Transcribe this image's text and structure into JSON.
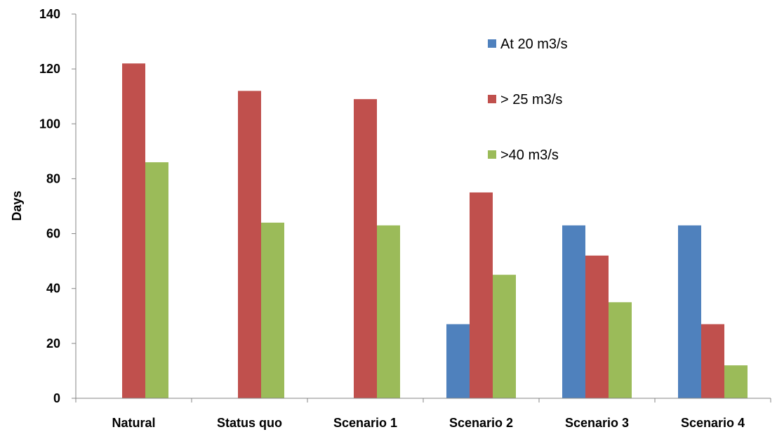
{
  "chart_data": {
    "type": "bar",
    "title": "",
    "xlabel": "",
    "ylabel": "Days",
    "ylim": [
      0,
      140
    ],
    "ytick_step": 20,
    "grid": false,
    "legend_placement": "top-right",
    "categories": [
      "Natural",
      "Status quo",
      "Scenario 1",
      "Scenario 2",
      "Scenario 3",
      "Scenario 4"
    ],
    "series": [
      {
        "name": "At 20 m3/s",
        "color": "#4F81BD",
        "values": [
          0,
          0,
          0,
          27,
          63,
          63
        ]
      },
      {
        "name": "> 25 m3/s",
        "color": "#C0504D",
        "values": [
          122,
          112,
          109,
          75,
          52,
          27
        ]
      },
      {
        "name": ">40 m3/s",
        "color": "#9BBB59",
        "values": [
          86,
          64,
          63,
          45,
          35,
          12
        ]
      }
    ]
  }
}
